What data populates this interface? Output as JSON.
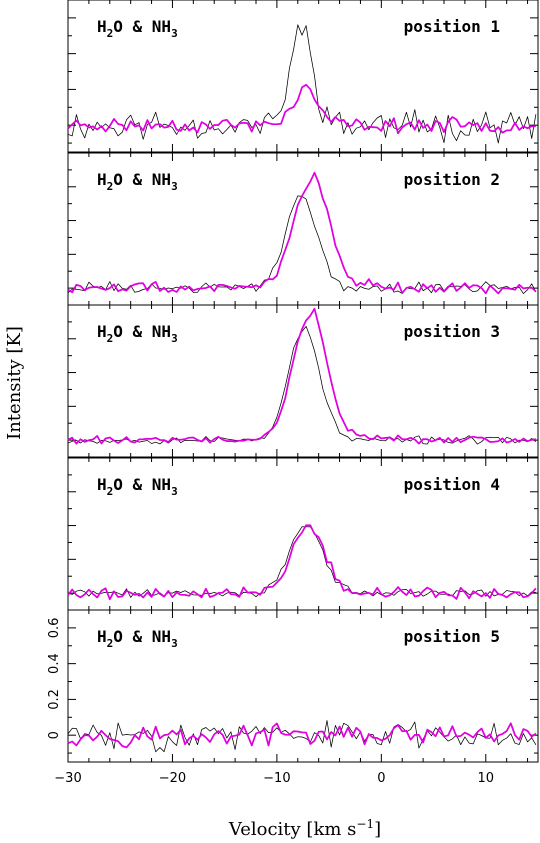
{
  "chart_data": {
    "type": "line",
    "xlabel": "Velocity [km s",
    "xlabel_sup": "−1",
    "xlabel_end": "]",
    "ylabel": "Intensity [K]",
    "xlim": [
      -30,
      15
    ],
    "x_ticks": [
      -30,
      -20,
      -10,
      0,
      10
    ],
    "x_tick_labels": [
      "−30",
      "−20",
      "−10",
      "0",
      "10"
    ],
    "y_tick_values_panel5": [
      0,
      0.2,
      0.4,
      0.6
    ],
    "y_tick_labels_panel5": [
      "0",
      "0.2",
      "0.4",
      "0.6"
    ],
    "colors": {
      "water": "#000000",
      "ammonia": "#e000e0"
    },
    "panels": [
      {
        "name": "position 1",
        "species_base": "H",
        "species_sub": "2",
        "species_mid": "O & NH",
        "species_sub2": "3",
        "peak_v": -7.5,
        "ylim": [
          -0.15,
          0.7
        ],
        "series": [
          {
            "name": "H2O",
            "color": "#000000",
            "width": 0.75,
            "amp": 0.54,
            "center": -7.6,
            "sigma": 1.1,
            "noise": 0.075,
            "seed": 11
          },
          {
            "name": "NH3",
            "color": "#e000e0",
            "width": 1.75,
            "amp": 0.2,
            "center": -7.3,
            "sigma": 1.2,
            "noise": 0.035,
            "seed": 23
          }
        ]
      },
      {
        "name": "position 2",
        "species_base": "H",
        "species_sub": "2",
        "species_mid": "O & NH",
        "species_sub2": "3",
        "peak_v": -7,
        "ylim": [
          -0.1,
          0.8
        ],
        "series": [
          {
            "name": "H2O",
            "color": "#000000",
            "width": 0.75,
            "amp": 0.55,
            "center": -7.6,
            "sigma": 1.5,
            "noise": 0.03,
            "seed": 31
          },
          {
            "name": "NH3",
            "color": "#e000e0",
            "width": 1.75,
            "amp": 0.62,
            "center": -6.8,
            "sigma": 1.7,
            "noise": 0.03,
            "seed": 47,
            "tail": 0.12
          }
        ]
      },
      {
        "name": "position 3",
        "species_base": "H",
        "species_sub": "2",
        "species_mid": "O & NH",
        "species_sub2": "3",
        "peak_v": -7,
        "ylim": [
          -0.1,
          0.8
        ],
        "series": [
          {
            "name": "H2O",
            "color": "#000000",
            "width": 0.75,
            "amp": 0.66,
            "center": -7.4,
            "sigma": 1.5,
            "noise": 0.02,
            "seed": 53
          },
          {
            "name": "NH3",
            "color": "#e000e0",
            "width": 1.75,
            "amp": 0.72,
            "center": -6.9,
            "sigma": 1.6,
            "noise": 0.02,
            "seed": 61,
            "tail": 0.1
          }
        ]
      },
      {
        "name": "position 4",
        "species_base": "H",
        "species_sub": "2",
        "species_mid": "O & NH",
        "species_sub2": "3",
        "peak_v": -7,
        "ylim": [
          -0.1,
          0.8
        ],
        "series": [
          {
            "name": "H2O",
            "color": "#000000",
            "width": 0.75,
            "amp": 0.4,
            "center": -7.2,
            "sigma": 1.6,
            "noise": 0.02,
            "seed": 71
          },
          {
            "name": "NH3",
            "color": "#e000e0",
            "width": 1.75,
            "amp": 0.4,
            "center": -7.0,
            "sigma": 1.6,
            "noise": 0.03,
            "seed": 79
          }
        ]
      },
      {
        "name": "position 5",
        "species_base": "H",
        "species_sub": "2",
        "species_mid": "O & NH",
        "species_sub2": "3",
        "peak_v": null,
        "ylim": [
          -0.15,
          0.7
        ],
        "series": [
          {
            "name": "H2O",
            "color": "#000000",
            "width": 0.75,
            "amp": 0.0,
            "center": -8,
            "sigma": 1.5,
            "noise": 0.07,
            "seed": 83
          },
          {
            "name": "NH3",
            "color": "#e000e0",
            "width": 1.75,
            "amp": 0.0,
            "center": -8,
            "sigma": 1.5,
            "noise": 0.05,
            "seed": 97
          }
        ]
      }
    ]
  }
}
